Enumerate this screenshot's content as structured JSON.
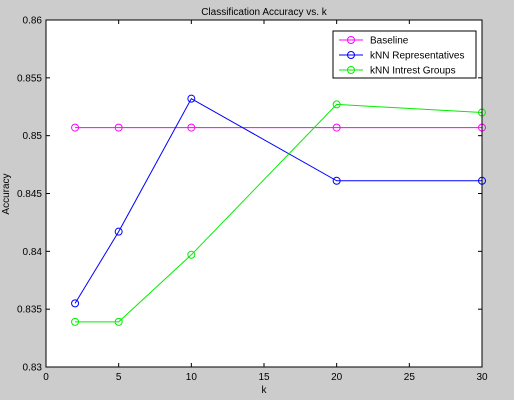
{
  "colors": {
    "figure_bg": "#cccccc",
    "axes_bg": "#ffffff",
    "axis_line": "#000000",
    "series": [
      "#ff00ff",
      "#0000ff",
      "#00ee00"
    ]
  },
  "chart_data": {
    "type": "line",
    "title": "Classification Accuracy vs. k",
    "xlabel": "k",
    "ylabel": "Accuracy",
    "xlim": [
      0,
      30
    ],
    "ylim": [
      0.83,
      0.86
    ],
    "xticks": [
      0,
      5,
      10,
      15,
      20,
      25,
      30
    ],
    "yticks": [
      0.83,
      0.835,
      0.84,
      0.845,
      0.85,
      0.855,
      0.86
    ],
    "ytick_labels": [
      "0.83",
      "0.835",
      "0.84",
      "0.845",
      "0.85",
      "0.855",
      "0.86"
    ],
    "grid": false,
    "legend_position": "top-right",
    "marker": "circle",
    "x": [
      2,
      5,
      10,
      20,
      30
    ],
    "series": [
      {
        "name": "Baseline",
        "values": [
          0.8507,
          0.8507,
          0.8507,
          0.8507,
          0.8507
        ]
      },
      {
        "name": "kNN Representatives",
        "values": [
          0.8355,
          0.8417,
          0.8532,
          0.8461,
          0.8461
        ]
      },
      {
        "name": "kNN Intrest Groups",
        "values": [
          0.8339,
          0.8339,
          0.8397,
          0.8527,
          0.852
        ]
      }
    ]
  }
}
